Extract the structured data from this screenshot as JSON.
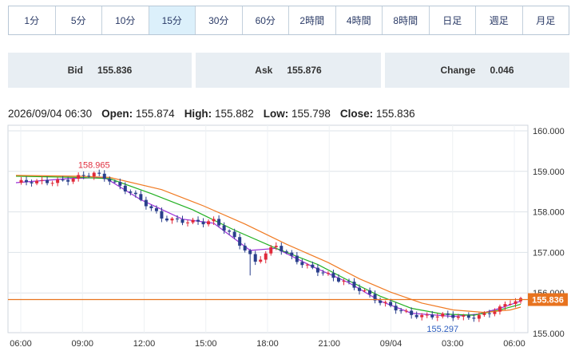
{
  "tabs": [
    {
      "label": "1分",
      "active": false
    },
    {
      "label": "5分",
      "active": false
    },
    {
      "label": "10分",
      "active": false
    },
    {
      "label": "15分",
      "active": true
    },
    {
      "label": "30分",
      "active": false
    },
    {
      "label": "60分",
      "active": false
    },
    {
      "label": "2時間",
      "active": false
    },
    {
      "label": "4時間",
      "active": false
    },
    {
      "label": "8時間",
      "active": false
    },
    {
      "label": "日足",
      "active": false
    },
    {
      "label": "週足",
      "active": false
    },
    {
      "label": "月足",
      "active": false
    }
  ],
  "quote": {
    "bid_label": "Bid",
    "bid_value": "155.836",
    "ask_label": "Ask",
    "ask_value": "155.876",
    "change_label": "Change",
    "change_value": "0.046"
  },
  "ohlc": {
    "datetime": "2026/09/04 06:30",
    "open_label": "Open:",
    "open": "155.874",
    "high_label": "High:",
    "high": "155.882",
    "low_label": "Low:",
    "low": "155.798",
    "close_label": "Close:",
    "close": "155.836"
  },
  "chart_data": {
    "type": "candlestick",
    "ylim": [
      155.0,
      160.0
    ],
    "y_ticks": [
      "155.000",
      "156.000",
      "157.000",
      "158.000",
      "159.000",
      "160.000"
    ],
    "x_ticks": [
      "06:00",
      "09:00",
      "12:00",
      "15:00",
      "18:00",
      "21:00",
      "09/04",
      "03:00",
      "06:00"
    ],
    "grid": true,
    "high_marker": "158.965",
    "low_marker": "155.297",
    "current_price": 155.836,
    "current_price_label": "155.836",
    "close_path": [
      [
        0,
        158.72
      ],
      [
        4,
        158.72
      ],
      [
        8,
        158.78
      ],
      [
        12,
        158.85
      ],
      [
        15,
        158.92
      ],
      [
        18,
        158.8
      ],
      [
        22,
        158.5
      ],
      [
        26,
        158.05
      ],
      [
        28,
        157.85
      ],
      [
        32,
        157.8
      ],
      [
        36,
        157.72
      ],
      [
        38,
        157.75
      ],
      [
        41,
        157.5
      ],
      [
        44,
        157.1
      ],
      [
        46,
        156.75
      ],
      [
        48,
        156.95
      ],
      [
        50,
        157.15
      ],
      [
        53,
        156.9
      ],
      [
        57,
        156.6
      ],
      [
        61,
        156.35
      ],
      [
        64,
        156.25
      ],
      [
        67,
        156.05
      ],
      [
        70,
        155.75
      ],
      [
        74,
        155.55
      ],
      [
        78,
        155.45
      ],
      [
        82,
        155.42
      ],
      [
        86,
        155.4
      ],
      [
        90,
        155.48
      ],
      [
        93,
        155.6
      ],
      [
        95,
        155.75
      ],
      [
        97,
        155.82
      ]
    ],
    "ma_series": [
      {
        "color": "#9b30d8",
        "points": [
          [
            0,
            158.72
          ],
          [
            10,
            158.82
          ],
          [
            17,
            158.85
          ],
          [
            24,
            158.3
          ],
          [
            32,
            157.82
          ],
          [
            38,
            157.72
          ],
          [
            45,
            157.05
          ],
          [
            50,
            157.1
          ],
          [
            57,
            156.65
          ],
          [
            64,
            156.25
          ],
          [
            70,
            155.8
          ],
          [
            76,
            155.5
          ],
          [
            84,
            155.42
          ],
          [
            89,
            155.48
          ],
          [
            93,
            155.62
          ],
          [
            97,
            155.8
          ]
        ]
      },
      {
        "color": "#22b022",
        "points": [
          [
            0,
            158.88
          ],
          [
            12,
            158.85
          ],
          [
            18,
            158.82
          ],
          [
            26,
            158.45
          ],
          [
            34,
            158.05
          ],
          [
            42,
            157.55
          ],
          [
            50,
            157.1
          ],
          [
            58,
            156.7
          ],
          [
            64,
            156.3
          ],
          [
            70,
            155.92
          ],
          [
            76,
            155.62
          ],
          [
            82,
            155.48
          ],
          [
            88,
            155.45
          ],
          [
            93,
            155.58
          ],
          [
            97,
            155.72
          ]
        ]
      },
      {
        "color": "#f07a22",
        "points": [
          [
            0,
            158.9
          ],
          [
            12,
            158.88
          ],
          [
            18,
            158.85
          ],
          [
            28,
            158.55
          ],
          [
            36,
            158.15
          ],
          [
            44,
            157.7
          ],
          [
            52,
            157.2
          ],
          [
            60,
            156.75
          ],
          [
            66,
            156.35
          ],
          [
            72,
            156.02
          ],
          [
            78,
            155.75
          ],
          [
            84,
            155.58
          ],
          [
            90,
            155.52
          ],
          [
            95,
            155.58
          ],
          [
            97,
            155.65
          ]
        ]
      }
    ]
  }
}
